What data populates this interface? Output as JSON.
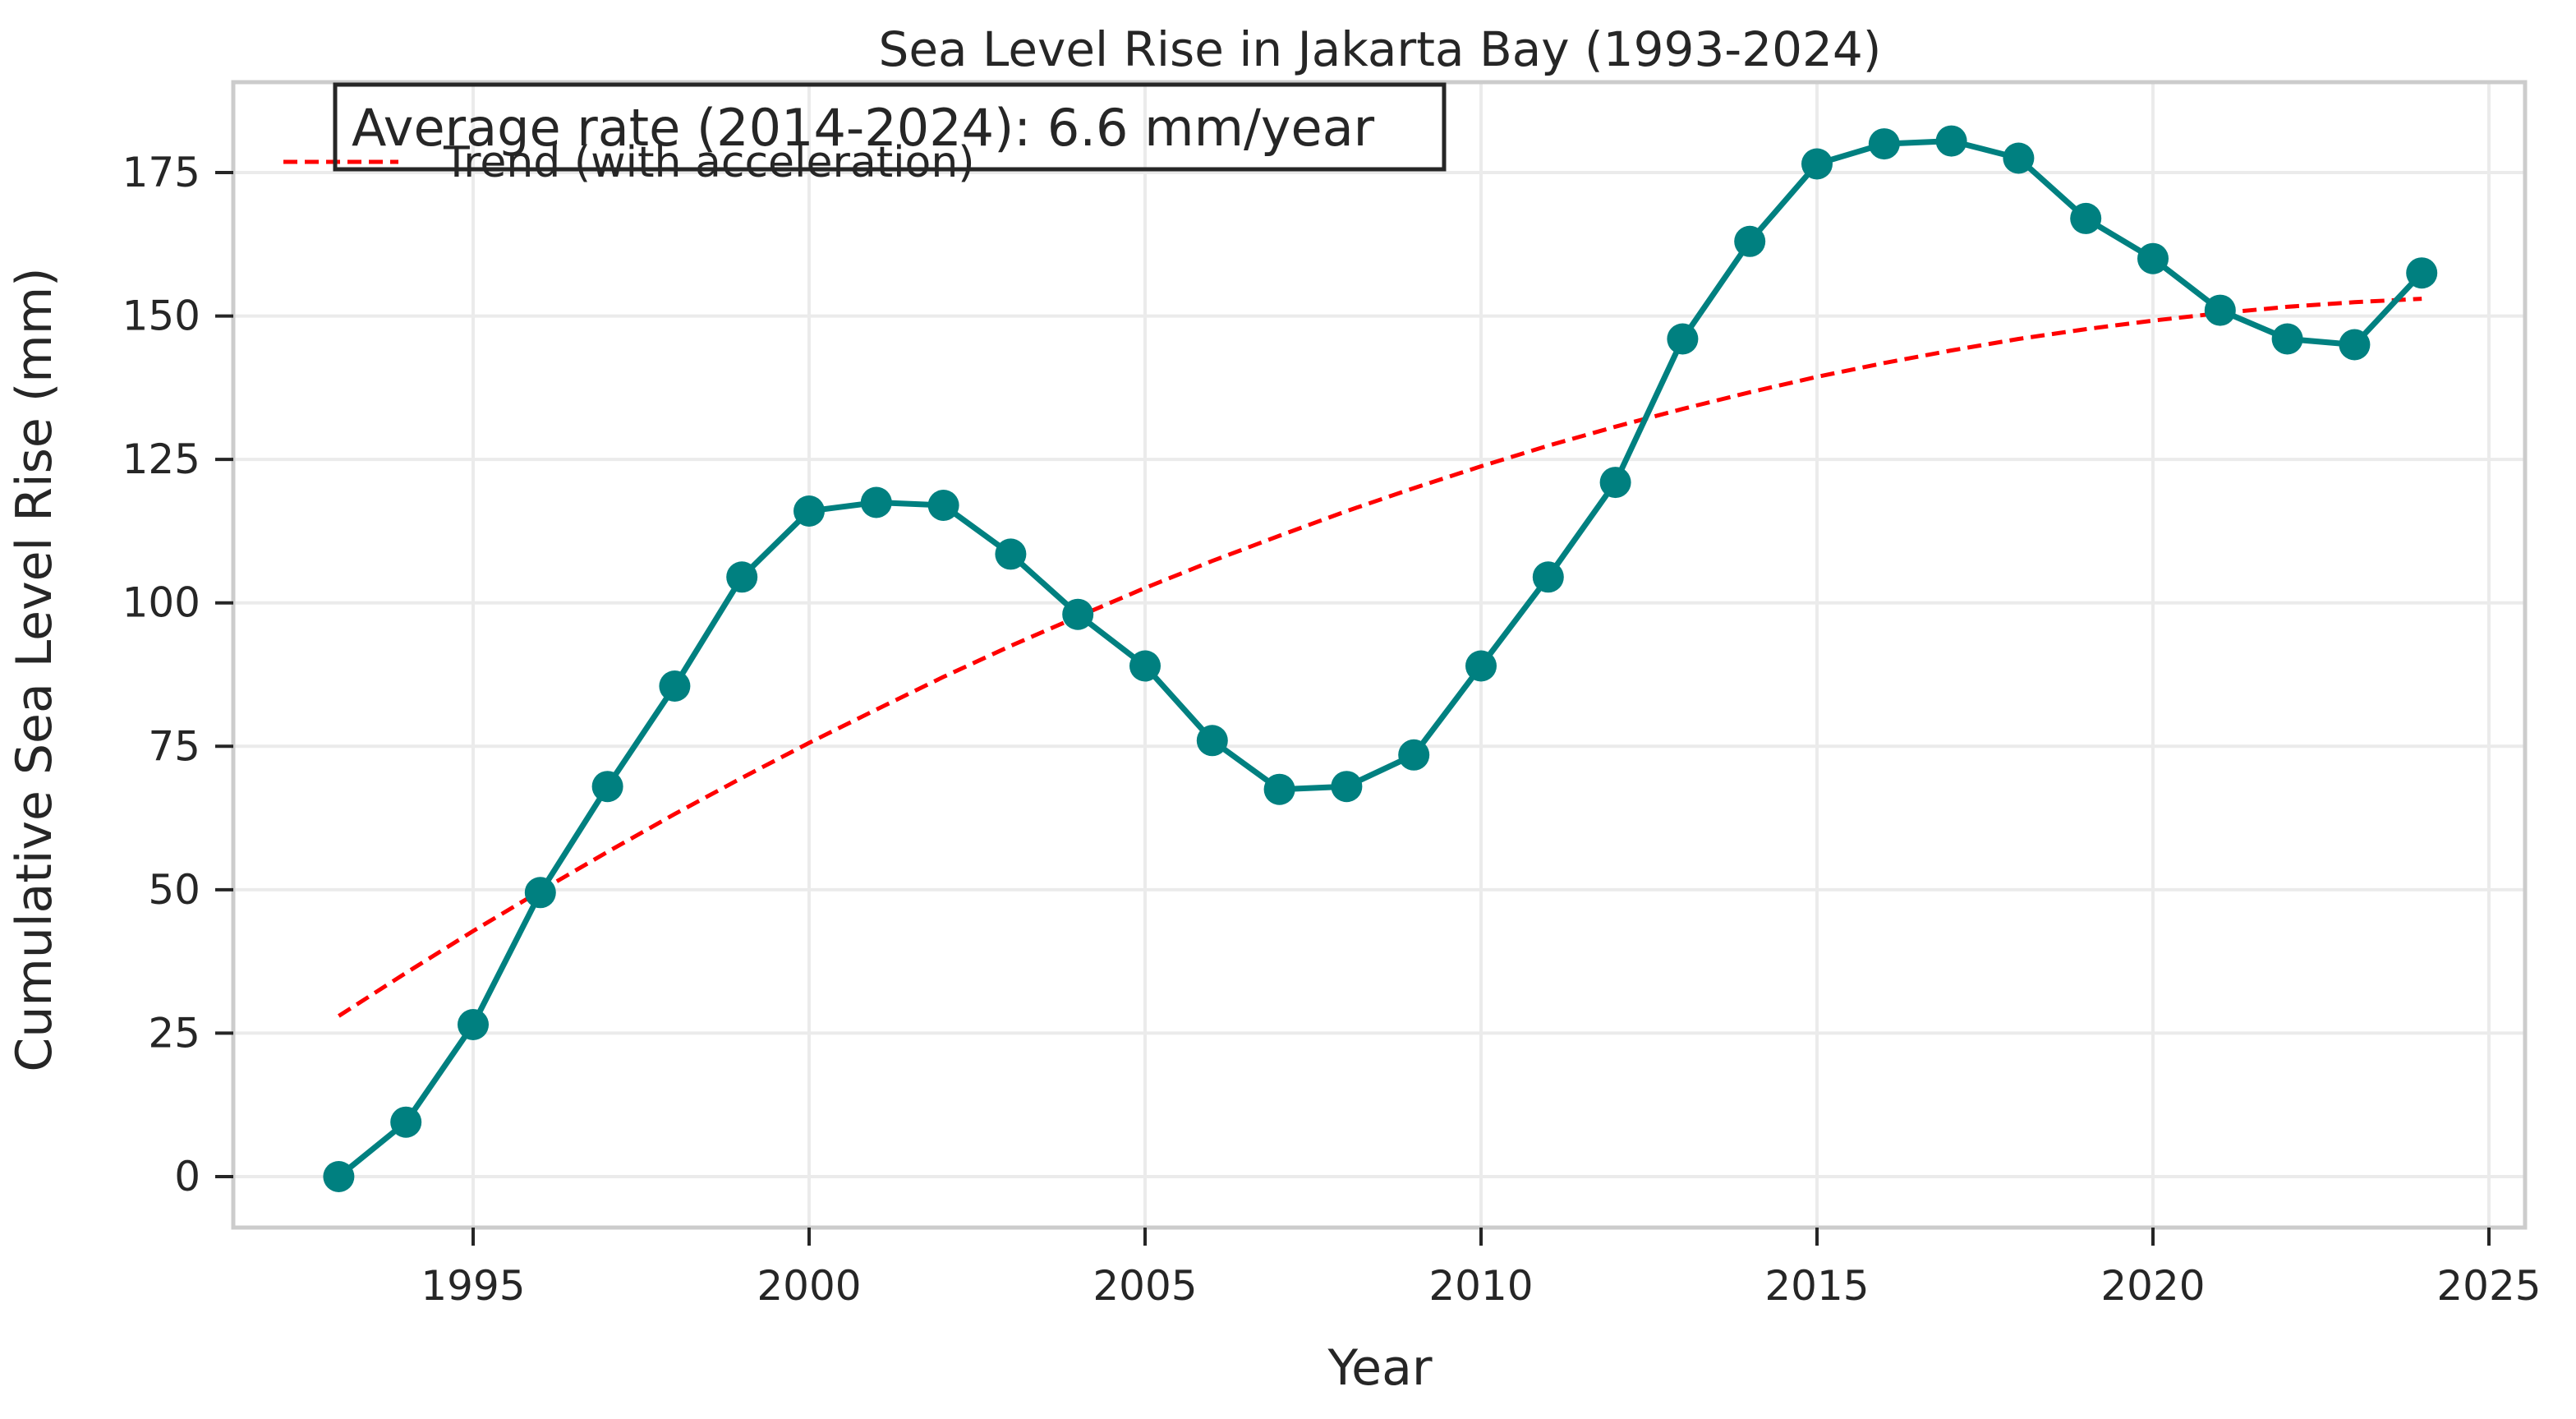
{
  "chart_data": {
    "type": "line",
    "title": "Sea Level Rise in Jakarta Bay (1993-2024)",
    "xlabel": "Year",
    "ylabel": "Cumulative Sea Level Rise (mm)",
    "xlim": [
      1989.6,
      2025.6
    ],
    "ylim": [
      -8,
      190
    ],
    "xticks": [
      1995,
      2000,
      2005,
      2010,
      2015,
      2020,
      2025
    ],
    "yticks": [
      0,
      25,
      50,
      75,
      100,
      125,
      150,
      175
    ],
    "grid": true,
    "legend_position": "top-left",
    "annotation": "Average rate (2014-2024): 6.6 mm/year",
    "x": [
      1993,
      1994,
      1995,
      1996,
      1997,
      1998,
      1999,
      2000,
      2001,
      2002,
      2003,
      2004,
      2005,
      2006,
      2007,
      2008,
      2009,
      2010,
      2011,
      2012,
      2013,
      2014,
      2015,
      2016,
      2017,
      2018,
      2019,
      2020,
      2021,
      2022,
      2023,
      2024
    ],
    "series": [
      {
        "style": "line-markers",
        "color": "#008080",
        "values": [
          0,
          9.5,
          26.5,
          49.5,
          68,
          85.5,
          104.5,
          116,
          117.5,
          117,
          108.5,
          98,
          89,
          76,
          67.5,
          68,
          73.5,
          89,
          104.5,
          121,
          146,
          163,
          176.5,
          180,
          180.5,
          177.5,
          167,
          160,
          151,
          146,
          145,
          157.5
        ]
      },
      {
        "name": "Trend (with acceleration)",
        "style": "dashed",
        "color": "#ff0000",
        "values": [
          28,
          35.5,
          42.8,
          49.8,
          56.6,
          63.2,
          69.5,
          75.6,
          81.4,
          87.1,
          92.5,
          97.6,
          102.6,
          107.3,
          111.7,
          116,
          120,
          123.8,
          127.4,
          130.7,
          133.8,
          136.7,
          139.4,
          141.8,
          144,
          146,
          147.7,
          149.2,
          150.5,
          151.6,
          152.4,
          153
        ]
      }
    ]
  },
  "colors": {
    "axes_edge": "#cccccc",
    "grid": "#ebebeb",
    "text": "#262626"
  }
}
